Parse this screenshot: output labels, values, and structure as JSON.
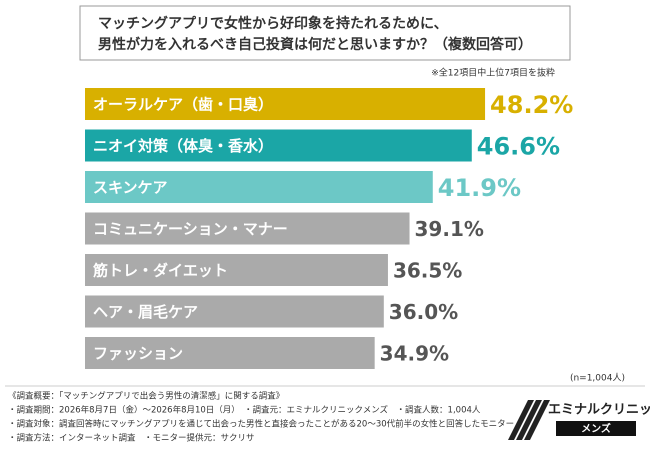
{
  "chart_data": {
    "type": "bar",
    "orientation": "horizontal",
    "title": [
      "マッチングアプリで女性から好印象を持たれるために、",
      "男性が力を入れるべき自己投資は何だと思いますか？（複数回答可）"
    ],
    "note": "※全12項目中上位7項目を抜粋",
    "categories": [
      "オーラルケア（歯・口臭）",
      "ニオイ対策（体臭・香水）",
      "スキンケア",
      "コミュニケーション・マナー",
      "筋トレ・ダイエット",
      "ヘア・眉毛ケア",
      "ファッション"
    ],
    "values": [
      48.2,
      46.6,
      41.9,
      39.1,
      36.5,
      36.0,
      34.9
    ],
    "value_labels": [
      "48.2%",
      "46.6%",
      "41.9%",
      "39.1%",
      "36.5%",
      "36.0%",
      "34.9%"
    ],
    "colors": [
      "#d8b000",
      "#1ba6a6",
      "#6cc8c6",
      "#aaaaaa",
      "#aaaaaa",
      "#aaaaaa",
      "#aaaaaa"
    ],
    "value_label_colors": [
      "#d8b000",
      "#1ba6a6",
      "#6cc8c6",
      "#555555",
      "#555555",
      "#555555",
      "#555555"
    ],
    "sample_size": "(n=1,004人)"
  },
  "footer": {
    "heading": "《調査概要：「マッチングアプリで出会う男性の清潔感」に関する調査》",
    "lines": [
      "・調査期間：2026年8月7日（金）～2026年8月10日（月）　・調査元：エミナルクリニックメンズ　・調査人数：1,004人",
      "・調査対象：調査回答時にマッチングアプリを通じて出会った男性と直接会ったことがある20～30代前半の女性と回答したモニター",
      "・調査方法：インターネット調査　・モニター提供元：サクリサ"
    ]
  },
  "logo": {
    "name": "エミナルクリニック",
    "sub": "メンズ"
  }
}
